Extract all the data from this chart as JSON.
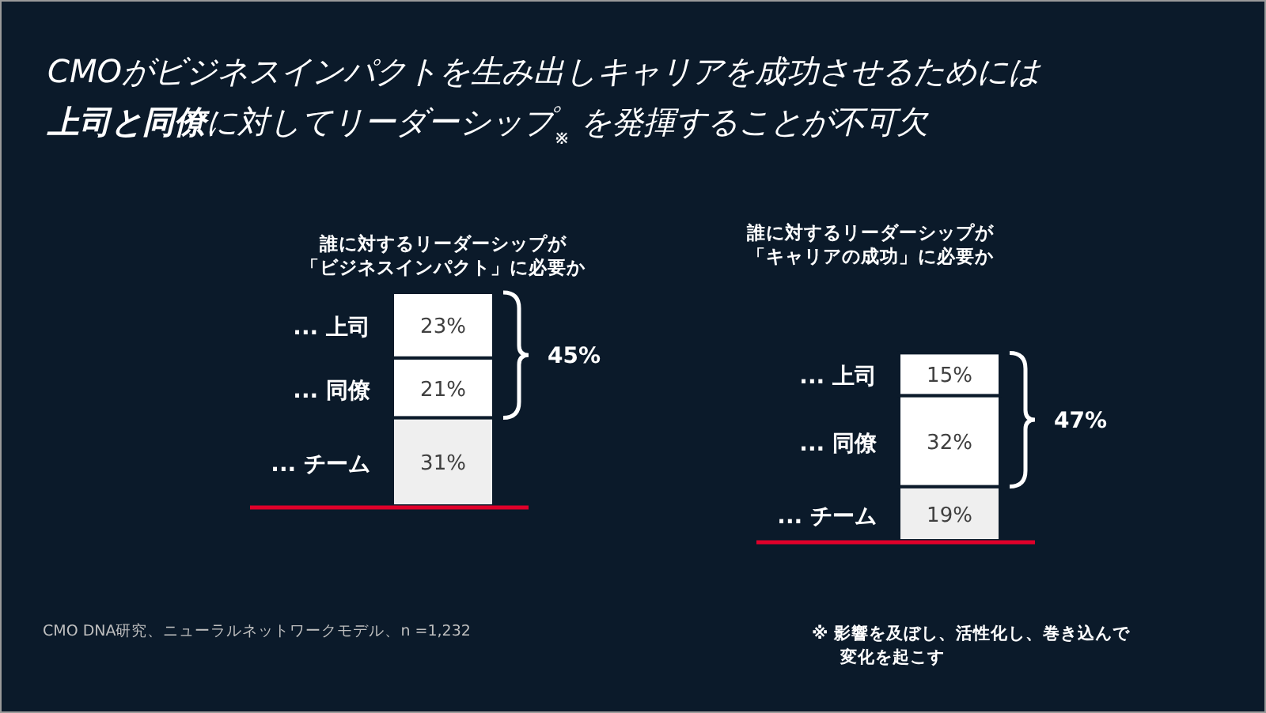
{
  "chart_data": [
    {
      "type": "bar",
      "stacked": true,
      "title": "誰に対するリーダーシップが",
      "subtitle": "「ビジネスインパクト」に必要か",
      "categories": [
        null
      ],
      "data_labels": true,
      "series": [
        {
          "name": "... チーム",
          "color": "#efefef",
          "values": [
            31
          ],
          "value_labels": [
            "31%"
          ]
        },
        {
          "name": "... 同僚",
          "color": "#ffffff",
          "values": [
            21
          ],
          "value_labels": [
            "21%"
          ]
        },
        {
          "name": "... 上司",
          "color": "#ffffff",
          "values": [
            23
          ],
          "value_labels": [
            "23%"
          ]
        }
      ],
      "annotations": [
        "45%",
        "CMOがビジネスインパクトを生み出しキャリアを成功させるためには",
        "**上司と同僚**に対してリーダーシップ$_{※}$ を発揮することが不可欠",
        "CMO DNA研究、ニューラルネットワークモデル、n =1,232"
      ]
    },
    {
      "type": "bar",
      "stacked": true,
      "title": "誰に対するリーダーシップが",
      "subtitle": "「キャリアの成功」に必要か",
      "categories": [
        null
      ],
      "data_labels": true,
      "series": [
        {
          "name": "... チーム",
          "color": "#efefef",
          "values": [
            19
          ],
          "value_labels": [
            "19%"
          ]
        },
        {
          "name": "... 同僚",
          "color": "#ffffff",
          "values": [
            32
          ],
          "value_labels": [
            "32%"
          ]
        },
        {
          "name": "... 上司",
          "color": "#ffffff",
          "values": [
            15
          ],
          "value_labels": [
            "15%"
          ]
        }
      ],
      "annotations": [
        "47%",
        "※ 影響を及ぼし、活性化し、巻き込んで",
        "変化を起こす"
      ]
    }
  ]
}
